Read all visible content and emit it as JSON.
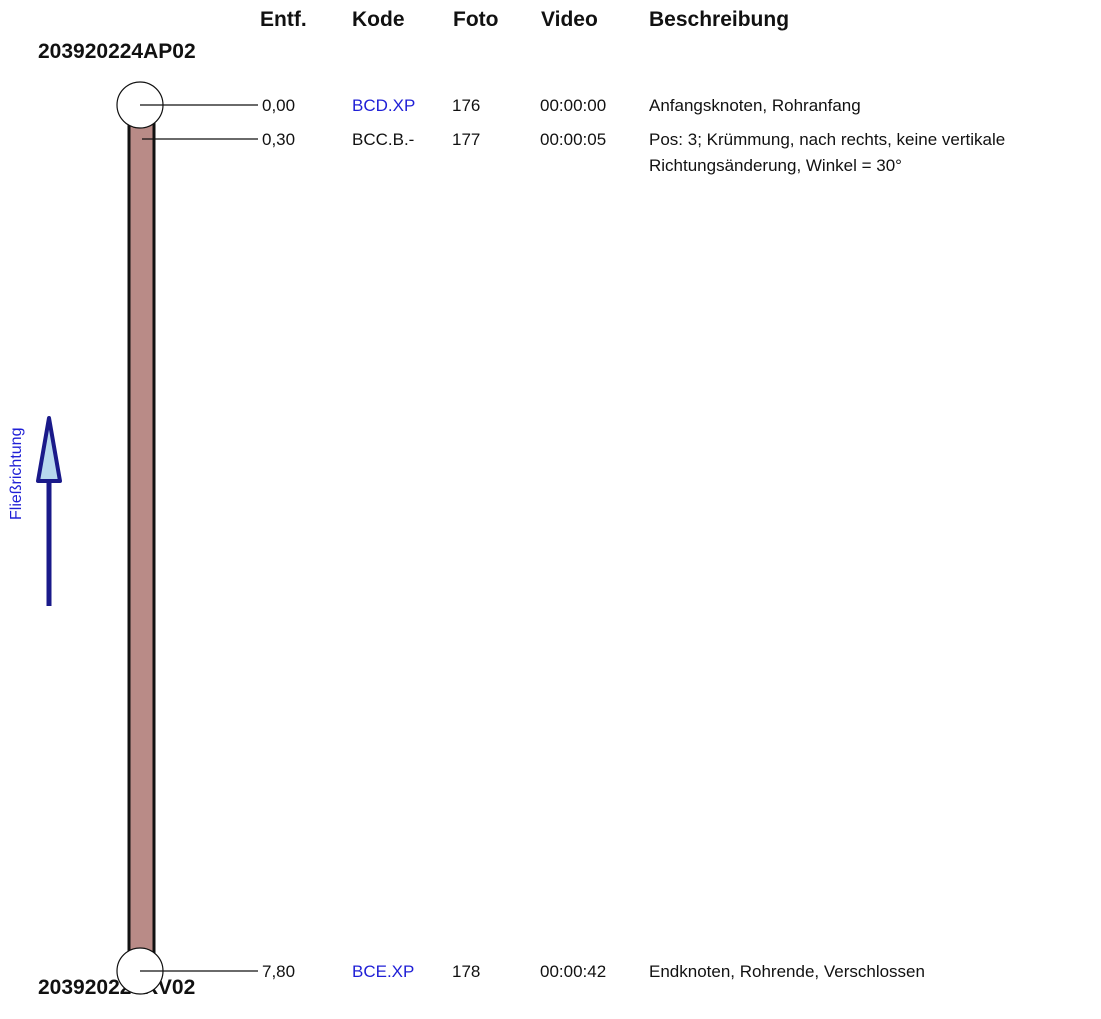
{
  "header": {
    "distance": "Entf.",
    "code": "Kode",
    "photo": "Foto",
    "video": "Video",
    "description": "Beschreibung"
  },
  "nodes": {
    "start": "203920224AP02",
    "end": "203920224RV02"
  },
  "flow_label": "Fließrichtung",
  "rows": [
    {
      "distance": "0,00",
      "code": "BCD.XP",
      "photo": "176",
      "video": "00:00:00",
      "description": "Anfangsknoten, Rohranfang",
      "description_line2": ""
    },
    {
      "distance": "0,30",
      "code": "BCC.B.-",
      "photo": "177",
      "video": "00:00:05",
      "description": "Pos: 3; Krümmung, nach rechts, keine vertikale",
      "description_line2": "Richtungsänderung, Winkel = 30°"
    },
    {
      "distance": "7,80",
      "code": "BCE.XP",
      "photo": "178",
      "video": "00:00:42",
      "description": "Endknoten, Rohrende, Verschlossen",
      "description_line2": ""
    }
  ],
  "colors": {
    "pipe_fill": "#b98b87",
    "code_link": "#1f1fd6",
    "arrow": "#1a1a8a",
    "arrow_fill": "#b8d8ee"
  }
}
